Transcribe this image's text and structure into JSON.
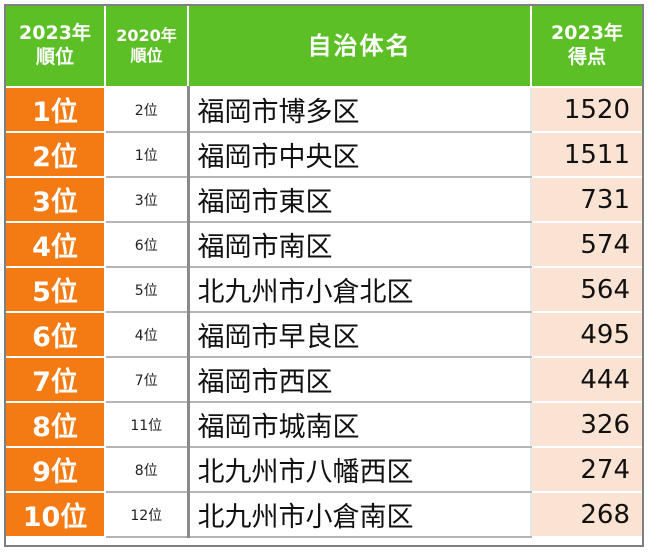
{
  "header": {
    "rank2023": [
      "2023年",
      "順位"
    ],
    "rank2020": [
      "2020年",
      "順位"
    ],
    "name": "自治体名",
    "score2023": [
      "2023年",
      "得点"
    ]
  },
  "rows": [
    {
      "rank2023": "1位",
      "rank2020": "2位",
      "name": "福岡市博多区",
      "score": "1520"
    },
    {
      "rank2023": "2位",
      "rank2020": "1位",
      "name": "福岡市中央区",
      "score": "1511"
    },
    {
      "rank2023": "3位",
      "rank2020": "3位",
      "name": "福岡市東区",
      "score": "731"
    },
    {
      "rank2023": "4位",
      "rank2020": "6位",
      "name": "福岡市南区",
      "score": "574"
    },
    {
      "rank2023": "5位",
      "rank2020": "5位",
      "name": "北九州市小倉北区",
      "score": "564"
    },
    {
      "rank2023": "6位",
      "rank2020": "4位",
      "name": "福岡市早良区",
      "score": "495"
    },
    {
      "rank2023": "7位",
      "rank2020": "7位",
      "name": "福岡市西区",
      "score": "444"
    },
    {
      "rank2023": "8位",
      "rank2020": "11位",
      "name": "福岡市城南区",
      "score": "326"
    },
    {
      "rank2023": "9位",
      "rank2020": "8位",
      "name": "北九州市八幡西区",
      "score": "274"
    },
    {
      "rank2023": "10位",
      "rank2020": "12位",
      "name": "北九州市小倉南区",
      "score": "268"
    }
  ],
  "colors": {
    "header_bg": "#5cbf26",
    "rank_bg": "#f47a14",
    "score_bg": "#fbe3d4"
  }
}
